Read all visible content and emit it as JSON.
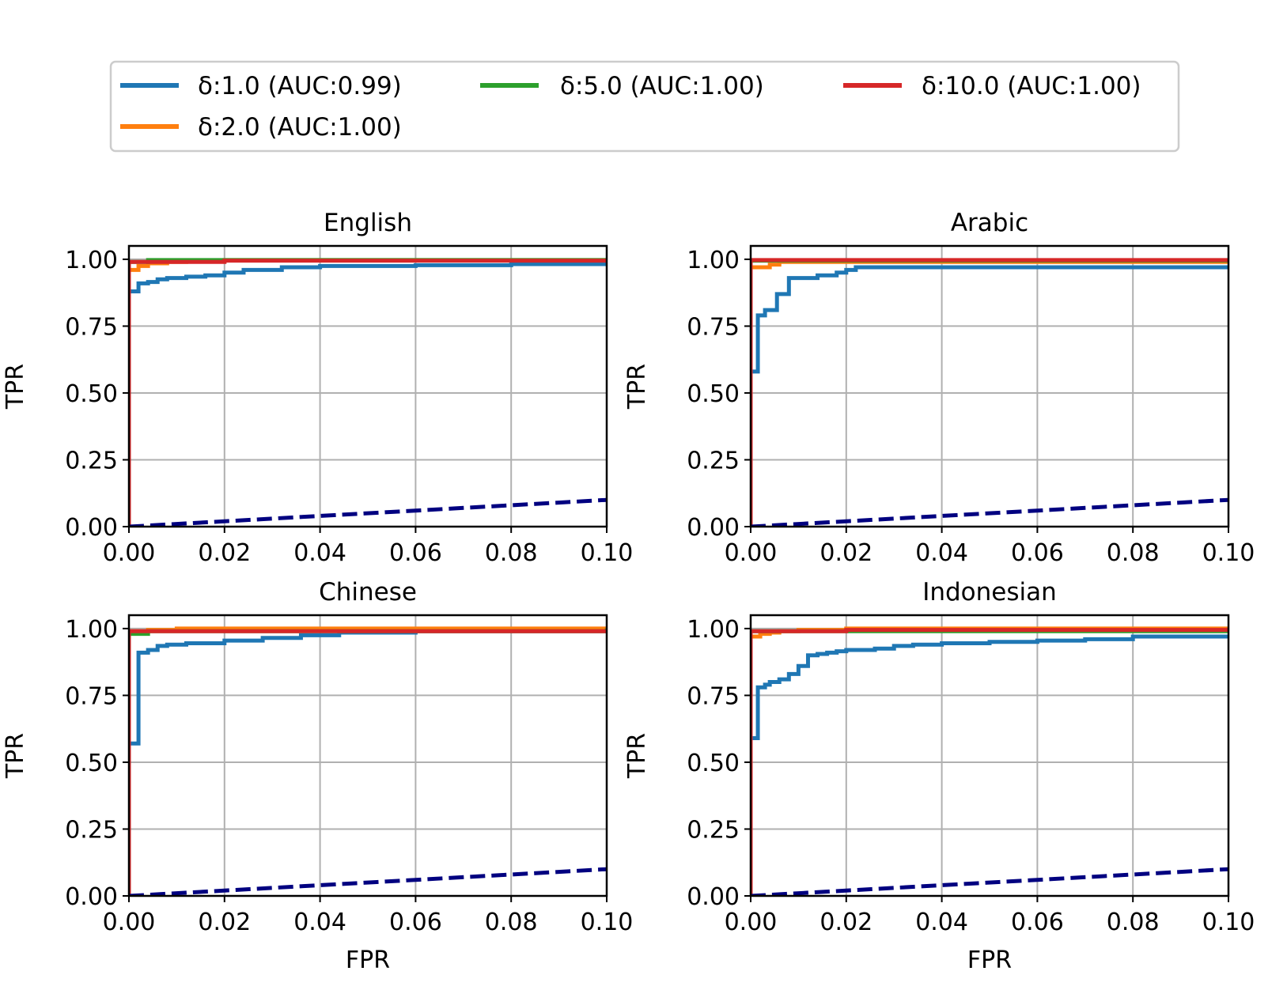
{
  "legend": {
    "location": "top-center, above all panels",
    "entries": [
      {
        "label": "δ:1.0 (AUC:0.99)",
        "color": "#1f77b4"
      },
      {
        "label": "δ:5.0 (AUC:1.00)",
        "color": "#2ca02c"
      },
      {
        "label": "δ:10.0 (AUC:1.00)",
        "color": "#d62728"
      },
      {
        "label": "δ:2.0 (AUC:1.00)",
        "color": "#ff7f0e"
      }
    ]
  },
  "chart_data": [
    {
      "type": "line",
      "title": "English",
      "xlabel": "",
      "ylabel": "TPR",
      "xlim": [
        0,
        0.1
      ],
      "ylim": [
        0,
        1.05
      ],
      "xticks": [
        "0.00",
        "0.02",
        "0.04",
        "0.06",
        "0.08",
        "0.10"
      ],
      "yticks": [
        "0.00",
        "0.25",
        "0.50",
        "0.75",
        "1.00"
      ],
      "grid": true,
      "series": [
        {
          "color": "#1f77b4",
          "step": true,
          "x": [
            0,
            0,
            0.002,
            0.002,
            0.004,
            0.006,
            0.008,
            0.012,
            0.016,
            0.02,
            0.024,
            0.032,
            0.04,
            0.06,
            0.08,
            0.1
          ],
          "y": [
            0,
            0.88,
            0.88,
            0.91,
            0.915,
            0.925,
            0.93,
            0.935,
            0.94,
            0.95,
            0.96,
            0.97,
            0.975,
            0.978,
            0.982,
            0.985
          ]
        },
        {
          "color": "#ff7f0e",
          "step": true,
          "x": [
            0,
            0,
            0.002,
            0.004,
            0.008,
            0.012,
            0.02,
            0.1
          ],
          "y": [
            0,
            0.96,
            0.975,
            0.985,
            0.99,
            0.993,
            0.997,
            1.0
          ]
        },
        {
          "color": "#2ca02c",
          "step": true,
          "x": [
            0,
            0,
            0.004,
            0.1
          ],
          "y": [
            0,
            0.99,
            0.997,
            1.0
          ]
        },
        {
          "color": "#d62728",
          "step": true,
          "x": [
            0,
            0,
            0.02,
            0.1
          ],
          "y": [
            0,
            0.99,
            0.995,
            0.995
          ]
        },
        {
          "color": "#000080",
          "dashed": true,
          "x": [
            0,
            0.1
          ],
          "y": [
            0,
            0.1
          ]
        }
      ]
    },
    {
      "type": "line",
      "title": "Arabic",
      "xlabel": "",
      "ylabel": "TPR",
      "xlim": [
        0,
        0.1
      ],
      "ylim": [
        0,
        1.05
      ],
      "xticks": [
        "0.00",
        "0.02",
        "0.04",
        "0.06",
        "0.08",
        "0.10"
      ],
      "yticks": [
        "0.00",
        "0.25",
        "0.50",
        "0.75",
        "1.00"
      ],
      "grid": true,
      "series": [
        {
          "color": "#1f77b4",
          "step": true,
          "x": [
            0,
            0,
            0.0015,
            0.0015,
            0.003,
            0.003,
            0.0055,
            0.0055,
            0.008,
            0.008,
            0.014,
            0.018,
            0.02,
            0.022,
            0.08,
            0.1
          ],
          "y": [
            0,
            0.58,
            0.58,
            0.79,
            0.8,
            0.81,
            0.81,
            0.87,
            0.87,
            0.93,
            0.94,
            0.95,
            0.96,
            0.97,
            0.97,
            0.975
          ]
        },
        {
          "color": "#ff7f0e",
          "step": true,
          "x": [
            0,
            0,
            0.002,
            0.004,
            0.006,
            0.1
          ],
          "y": [
            0,
            0.97,
            0.97,
            0.98,
            0.99,
            1.0
          ]
        },
        {
          "color": "#2ca02c",
          "step": true,
          "x": [
            0,
            0,
            0.1
          ],
          "y": [
            0,
            0.995,
            1.0
          ]
        },
        {
          "color": "#d62728",
          "step": true,
          "x": [
            0,
            0,
            0.1
          ],
          "y": [
            0,
            0.997,
            1.0
          ]
        },
        {
          "color": "#000080",
          "dashed": true,
          "x": [
            0,
            0.1
          ],
          "y": [
            0,
            0.1
          ]
        }
      ]
    },
    {
      "type": "line",
      "title": "Chinese",
      "xlabel": "FPR",
      "ylabel": "TPR",
      "xlim": [
        0,
        0.1
      ],
      "ylim": [
        0,
        1.05
      ],
      "xticks": [
        "0.00",
        "0.02",
        "0.04",
        "0.06",
        "0.08",
        "0.10"
      ],
      "yticks": [
        "0.00",
        "0.25",
        "0.50",
        "0.75",
        "1.00"
      ],
      "grid": true,
      "series": [
        {
          "color": "#1f77b4",
          "step": true,
          "x": [
            0,
            0,
            0.002,
            0.002,
            0.004,
            0.006,
            0.008,
            0.012,
            0.02,
            0.028,
            0.036,
            0.044,
            0.06,
            0.1
          ],
          "y": [
            0,
            0.57,
            0.57,
            0.91,
            0.92,
            0.935,
            0.94,
            0.945,
            0.955,
            0.965,
            0.975,
            0.985,
            0.99,
            0.995
          ]
        },
        {
          "color": "#ff7f0e",
          "step": true,
          "x": [
            0,
            0,
            0.004,
            0.01,
            0.1
          ],
          "y": [
            0,
            0.99,
            0.995,
            1.0,
            1.0
          ]
        },
        {
          "color": "#2ca02c",
          "step": true,
          "x": [
            0,
            0,
            0.004,
            0.1
          ],
          "y": [
            0,
            0.98,
            0.99,
            1.0
          ]
        },
        {
          "color": "#d62728",
          "step": true,
          "x": [
            0,
            0,
            0.1
          ],
          "y": [
            0,
            0.99,
            0.99
          ]
        },
        {
          "color": "#000080",
          "dashed": true,
          "x": [
            0,
            0.1
          ],
          "y": [
            0,
            0.1
          ]
        }
      ]
    },
    {
      "type": "line",
      "title": "Indonesian",
      "xlabel": "FPR",
      "ylabel": "TPR",
      "xlim": [
        0,
        0.1
      ],
      "ylim": [
        0,
        1.05
      ],
      "xticks": [
        "0.00",
        "0.02",
        "0.04",
        "0.06",
        "0.08",
        "0.10"
      ],
      "yticks": [
        "0.00",
        "0.25",
        "0.50",
        "0.75",
        "1.00"
      ],
      "grid": true,
      "series": [
        {
          "color": "#1f77b4",
          "step": true,
          "x": [
            0,
            0,
            0.0015,
            0.0015,
            0.003,
            0.004,
            0.006,
            0.008,
            0.01,
            0.012,
            0.014,
            0.016,
            0.018,
            0.02,
            0.026,
            0.03,
            0.034,
            0.04,
            0.05,
            0.06,
            0.07,
            0.08,
            0.1
          ],
          "y": [
            0,
            0.59,
            0.59,
            0.78,
            0.79,
            0.8,
            0.81,
            0.83,
            0.86,
            0.9,
            0.905,
            0.91,
            0.915,
            0.92,
            0.925,
            0.935,
            0.94,
            0.945,
            0.95,
            0.955,
            0.96,
            0.97,
            0.975
          ]
        },
        {
          "color": "#ff7f0e",
          "step": true,
          "x": [
            0,
            0,
            0.002,
            0.004,
            0.006,
            0.01,
            0.02,
            0.1
          ],
          "y": [
            0,
            0.97,
            0.98,
            0.985,
            0.99,
            0.995,
            1.0,
            1.0
          ]
        },
        {
          "color": "#2ca02c",
          "step": true,
          "x": [
            0,
            0,
            0.1
          ],
          "y": [
            0,
            0.99,
            1.0
          ]
        },
        {
          "color": "#d62728",
          "step": true,
          "x": [
            0,
            0,
            0.02,
            0.1
          ],
          "y": [
            0,
            0.99,
            0.995,
            1.0
          ]
        },
        {
          "color": "#000080",
          "dashed": true,
          "x": [
            0,
            0.1
          ],
          "y": [
            0,
            0.1
          ]
        }
      ]
    }
  ]
}
